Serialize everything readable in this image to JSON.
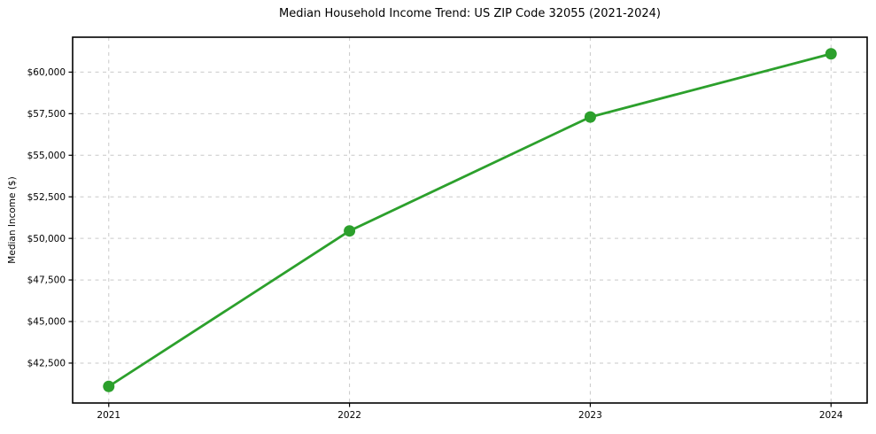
{
  "chart_data": {
    "type": "line",
    "title": "Median Household Income Trend: US ZIP Code 32055 (2021-2024)",
    "xlabel": "",
    "ylabel": "Median Income ($)",
    "x": [
      2021,
      2022,
      2023,
      2024
    ],
    "series": [
      {
        "name": "Median Household Income",
        "values": [
          41100,
          50450,
          57300,
          61100
        ]
      }
    ],
    "xlim": [
      2020.85,
      2024.15
    ],
    "ylim": [
      40100,
      62100
    ],
    "xticks": {
      "values": [
        2021,
        2022,
        2023,
        2024
      ],
      "labels": [
        "2021",
        "2022",
        "2023",
        "2024"
      ]
    },
    "yticks": {
      "values": [
        42500,
        45000,
        47500,
        50000,
        52500,
        55000,
        57500,
        60000
      ],
      "labels": [
        "$42,500",
        "$45,000",
        "$47,500",
        "$50,000",
        "$52,500",
        "$55,000",
        "$57,500",
        "$60,000"
      ]
    },
    "grid": true,
    "grid_style": "dashed",
    "legend_position": "none",
    "line_color": "#2ca02c",
    "marker_color": "#2ca02c",
    "marker_size": 6.5,
    "line_width": 2.8,
    "grid_color": "#c9c9c9",
    "axis_color": "#000000",
    "background_color": "#ffffff"
  }
}
